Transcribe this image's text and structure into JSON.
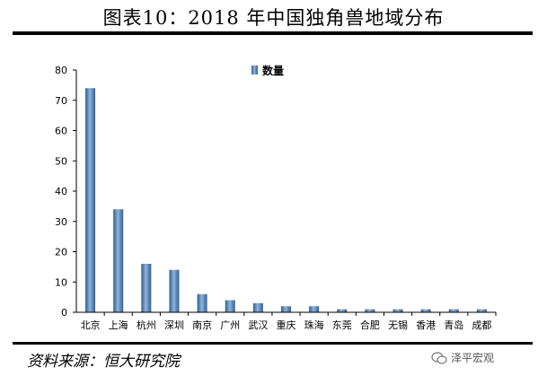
{
  "title": "图表10：2018 年中国独角兽地域分布",
  "source": "资料来源：恒大研究院",
  "watermark": "泽平宏观",
  "chart_data": {
    "type": "bar",
    "categories": [
      "北京",
      "上海",
      "杭州",
      "深圳",
      "南京",
      "广州",
      "武汉",
      "重庆",
      "珠海",
      "东莞",
      "合肥",
      "无锡",
      "香港",
      "青岛",
      "成都"
    ],
    "series": [
      {
        "name": "数量",
        "values": [
          74,
          34,
          16,
          14,
          6,
          4,
          3,
          2,
          2,
          1,
          1,
          1,
          1,
          1,
          1
        ]
      }
    ],
    "yticks": [
      0,
      10,
      20,
      30,
      40,
      50,
      60,
      70,
      80
    ],
    "ylim": [
      0,
      80
    ],
    "legend": "top-center",
    "bar_color": "#4f81bd"
  }
}
